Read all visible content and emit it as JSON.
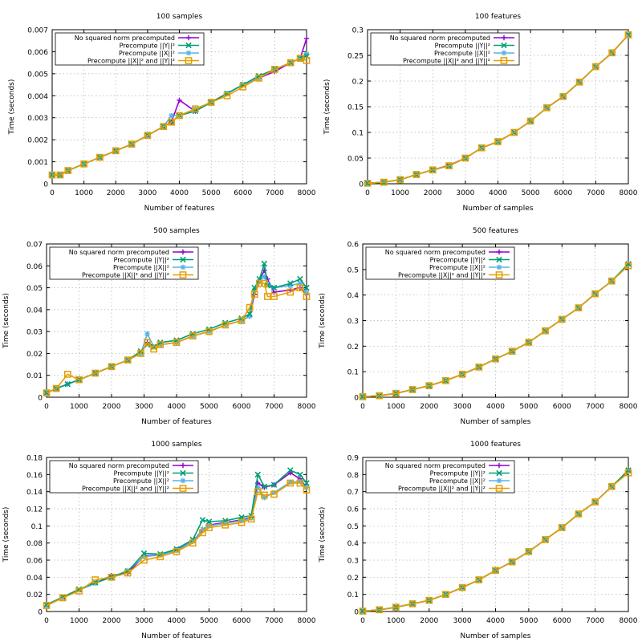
{
  "legend": {
    "entries": [
      {
        "label": "No squared norm precomputed",
        "color": "#9400d3",
        "marker": "plus"
      },
      {
        "label": "Precompute ||Y||²",
        "color": "#009e73",
        "marker": "cross"
      },
      {
        "label": "Precompute ||X||²",
        "color": "#56b4e9",
        "marker": "star"
      },
      {
        "label": "Precompute ||X||² and ||Y||²",
        "color": "#e69f00",
        "marker": "square"
      }
    ]
  },
  "chart_data": [
    {
      "type": "line",
      "title": "100 samples",
      "xlabel": "Number of features",
      "ylabel": "Time (seconds)",
      "xlim": [
        0,
        8000
      ],
      "ylim": [
        0,
        0.007
      ],
      "xticks": [
        0,
        1000,
        2000,
        3000,
        4000,
        5000,
        6000,
        7000,
        8000
      ],
      "xtick_labels": [
        "0",
        "1000",
        "2000",
        "3000",
        "4000",
        "5000",
        "6000",
        "7000",
        "8000"
      ],
      "yticks": [
        0,
        0.001,
        0.002,
        0.003,
        0.004,
        0.005,
        0.006,
        0.007
      ],
      "ytick_labels": [
        "0",
        "0.001",
        "0.002",
        "0.003",
        "0.004",
        "0.005",
        "0.006",
        "0.007"
      ],
      "x": [
        0,
        250,
        500,
        1000,
        1500,
        2000,
        2500,
        3000,
        3500,
        3750,
        4000,
        4500,
        5000,
        5500,
        6000,
        6500,
        7000,
        7500,
        7800,
        8000
      ],
      "series": [
        {
          "name": "No squared norm precomputed",
          "values": [
            0.0004,
            0.0004,
            0.0006,
            0.0009,
            0.0012,
            0.0015,
            0.0018,
            0.0022,
            0.0026,
            0.0028,
            0.0038,
            0.0033,
            0.0037,
            0.0041,
            0.0045,
            0.0048,
            0.0051,
            0.0055,
            0.0057,
            0.0066
          ]
        },
        {
          "name": "Precompute ||Y||²",
          "values": [
            0.0004,
            0.0004,
            0.0006,
            0.0009,
            0.0012,
            0.0015,
            0.0018,
            0.0022,
            0.0026,
            0.0028,
            0.0031,
            0.0033,
            0.0037,
            0.0041,
            0.0045,
            0.0049,
            0.0052,
            0.0055,
            0.0057,
            0.0058
          ]
        },
        {
          "name": "Precompute ||X||²",
          "values": [
            0.0004,
            0.0004,
            0.0006,
            0.0009,
            0.0012,
            0.0015,
            0.0018,
            0.0022,
            0.0026,
            0.0031,
            0.0031,
            0.0034,
            0.0037,
            0.0041,
            0.0045,
            0.0048,
            0.0052,
            0.0055,
            0.0057,
            0.0059
          ]
        },
        {
          "name": "Precompute ||X||² and ||Y||²",
          "values": [
            0.0004,
            0.0004,
            0.0006,
            0.0009,
            0.0012,
            0.0015,
            0.0018,
            0.0022,
            0.0026,
            0.0028,
            0.0031,
            0.0034,
            0.0037,
            0.004,
            0.0044,
            0.0048,
            0.0052,
            0.0055,
            0.0057,
            0.0056
          ]
        }
      ]
    },
    {
      "type": "line",
      "title": "100 features",
      "xlabel": "Number of samples",
      "ylabel": "Time (seconds)",
      "xlim": [
        0,
        8000
      ],
      "ylim": [
        0,
        0.3
      ],
      "xticks": [
        0,
        1000,
        2000,
        3000,
        4000,
        5000,
        6000,
        7000,
        8000
      ],
      "xtick_labels": [
        "0",
        "1000",
        "2000",
        "3000",
        "4000",
        "5000",
        "6000",
        "7000",
        "8000"
      ],
      "yticks": [
        0,
        0.05,
        0.1,
        0.15,
        0.2,
        0.25,
        0.3
      ],
      "ytick_labels": [
        "0",
        "0.05",
        "0.1",
        "0.15",
        "0.2",
        "0.25",
        "0.3"
      ],
      "x": [
        0,
        500,
        1000,
        1500,
        2000,
        2500,
        3000,
        3500,
        4000,
        4500,
        5000,
        5500,
        6000,
        6500,
        7000,
        7500,
        8000
      ],
      "series": [
        {
          "name": "No squared norm precomputed",
          "values": [
            0.001,
            0.003,
            0.008,
            0.018,
            0.027,
            0.036,
            0.05,
            0.07,
            0.082,
            0.1,
            0.122,
            0.148,
            0.17,
            0.198,
            0.228,
            0.255,
            0.29
          ]
        },
        {
          "name": "Precompute ||Y||²",
          "values": [
            0.001,
            0.003,
            0.008,
            0.018,
            0.027,
            0.035,
            0.05,
            0.07,
            0.082,
            0.1,
            0.122,
            0.148,
            0.17,
            0.198,
            0.228,
            0.255,
            0.29
          ]
        },
        {
          "name": "Precompute ||X||²",
          "values": [
            0.001,
            0.003,
            0.008,
            0.018,
            0.027,
            0.035,
            0.05,
            0.07,
            0.082,
            0.1,
            0.122,
            0.148,
            0.17,
            0.198,
            0.228,
            0.255,
            0.29
          ]
        },
        {
          "name": "Precompute ||X||² and ||Y||²",
          "values": [
            0.001,
            0.003,
            0.008,
            0.018,
            0.027,
            0.035,
            0.05,
            0.07,
            0.082,
            0.1,
            0.122,
            0.148,
            0.17,
            0.198,
            0.228,
            0.255,
            0.29
          ]
        }
      ]
    },
    {
      "type": "line",
      "title": "500 samples",
      "xlabel": "Number of features",
      "ylabel": "Time (seconds)",
      "xlim": [
        0,
        8000
      ],
      "ylim": [
        0,
        0.07
      ],
      "xticks": [
        0,
        1000,
        2000,
        3000,
        4000,
        5000,
        6000,
        7000,
        8000
      ],
      "xtick_labels": [
        "0",
        "1000",
        "2000",
        "3000",
        "4000",
        "5000",
        "6000",
        "7000",
        "8000"
      ],
      "yticks": [
        0,
        0.01,
        0.02,
        0.03,
        0.04,
        0.05,
        0.06,
        0.07
      ],
      "ytick_labels": [
        "0",
        "0.01",
        "0.02",
        "0.03",
        "0.04",
        "0.05",
        "0.06",
        "0.07"
      ],
      "x": [
        0,
        300,
        650,
        1000,
        1500,
        2000,
        2500,
        2900,
        3100,
        3300,
        3500,
        4000,
        4500,
        5000,
        5500,
        6000,
        6250,
        6400,
        6550,
        6700,
        6800,
        7000,
        7500,
        7800,
        8000
      ],
      "series": [
        {
          "name": "No squared norm precomputed",
          "values": [
            0.002,
            0.004,
            0.006,
            0.008,
            0.011,
            0.014,
            0.017,
            0.02,
            0.025,
            0.023,
            0.024,
            0.025,
            0.028,
            0.03,
            0.033,
            0.035,
            0.037,
            0.047,
            0.053,
            0.058,
            0.054,
            0.048,
            0.049,
            0.05,
            0.047
          ]
        },
        {
          "name": "Precompute ||Y||²",
          "values": [
            0.002,
            0.004,
            0.006,
            0.008,
            0.011,
            0.014,
            0.017,
            0.021,
            0.024,
            0.023,
            0.025,
            0.026,
            0.029,
            0.031,
            0.034,
            0.036,
            0.038,
            0.05,
            0.054,
            0.061,
            0.051,
            0.05,
            0.052,
            0.054,
            0.05
          ]
        },
        {
          "name": "Precompute ||X||²",
          "values": [
            0.002,
            0.004,
            0.006,
            0.008,
            0.011,
            0.014,
            0.017,
            0.02,
            0.029,
            0.023,
            0.024,
            0.025,
            0.028,
            0.03,
            0.033,
            0.035,
            0.037,
            0.049,
            0.053,
            0.055,
            0.052,
            0.05,
            0.051,
            0.052,
            0.048
          ]
        },
        {
          "name": "Precompute ||X||² and ||Y||²",
          "values": [
            0.002,
            0.004,
            0.0105,
            0.008,
            0.011,
            0.014,
            0.017,
            0.02,
            0.025,
            0.022,
            0.024,
            0.025,
            0.028,
            0.03,
            0.033,
            0.035,
            0.041,
            0.047,
            0.052,
            0.052,
            0.046,
            0.046,
            0.048,
            0.05,
            0.046
          ]
        }
      ]
    },
    {
      "type": "line",
      "title": "500 features",
      "xlabel": "Number of samples",
      "ylabel": "Time (seconds)",
      "xlim": [
        0,
        8000
      ],
      "ylim": [
        0,
        0.6
      ],
      "xticks": [
        0,
        1000,
        2000,
        3000,
        4000,
        5000,
        6000,
        7000,
        8000
      ],
      "xtick_labels": [
        "0",
        "1000",
        "2000",
        "3000",
        "4000",
        "5000",
        "6000",
        "7000",
        "8000"
      ],
      "yticks": [
        0,
        0.1,
        0.2,
        0.3,
        0.4,
        0.5,
        0.6
      ],
      "ytick_labels": [
        "0",
        "0.1",
        "0.2",
        "0.3",
        "0.4",
        "0.5",
        "0.6"
      ],
      "x": [
        0,
        500,
        1000,
        1500,
        2000,
        2500,
        3000,
        3500,
        4000,
        4500,
        5000,
        5500,
        6000,
        6500,
        7000,
        7500,
        8000
      ],
      "series": [
        {
          "name": "No squared norm precomputed",
          "values": [
            0.002,
            0.006,
            0.015,
            0.03,
            0.045,
            0.065,
            0.09,
            0.118,
            0.15,
            0.18,
            0.215,
            0.26,
            0.305,
            0.35,
            0.405,
            0.455,
            0.52
          ]
        },
        {
          "name": "Precompute ||Y||²",
          "values": [
            0.002,
            0.006,
            0.015,
            0.03,
            0.045,
            0.065,
            0.09,
            0.118,
            0.15,
            0.18,
            0.215,
            0.26,
            0.305,
            0.35,
            0.405,
            0.455,
            0.522
          ]
        },
        {
          "name": "Precompute ||X||²",
          "values": [
            0.002,
            0.006,
            0.015,
            0.03,
            0.045,
            0.065,
            0.09,
            0.118,
            0.15,
            0.18,
            0.215,
            0.26,
            0.305,
            0.35,
            0.405,
            0.455,
            0.52
          ]
        },
        {
          "name": "Precompute ||X||² and ||Y||²",
          "values": [
            0.002,
            0.006,
            0.015,
            0.03,
            0.045,
            0.065,
            0.09,
            0.118,
            0.15,
            0.18,
            0.215,
            0.26,
            0.305,
            0.35,
            0.405,
            0.455,
            0.515
          ]
        }
      ]
    },
    {
      "type": "line",
      "title": "1000 samples",
      "xlabel": "Number of features",
      "ylabel": "Time (seconds)",
      "xlim": [
        0,
        8000
      ],
      "ylim": [
        0,
        0.18
      ],
      "xticks": [
        0,
        1000,
        2000,
        3000,
        4000,
        5000,
        6000,
        7000,
        8000
      ],
      "xtick_labels": [
        "0",
        "1000",
        "2000",
        "3000",
        "4000",
        "5000",
        "6000",
        "7000",
        "8000"
      ],
      "yticks": [
        0,
        0.02,
        0.04,
        0.06,
        0.08,
        0.1,
        0.12,
        0.14,
        0.16,
        0.18
      ],
      "ytick_labels": [
        "0",
        "0.02",
        "0.04",
        "0.06",
        "0.08",
        "0.1",
        "0.12",
        "0.14",
        "0.16",
        "0.18"
      ],
      "x": [
        0,
        500,
        1000,
        1500,
        2000,
        2500,
        3000,
        3500,
        4000,
        4500,
        4800,
        5000,
        5500,
        6000,
        6300,
        6500,
        6700,
        7000,
        7500,
        7800,
        8000
      ],
      "series": [
        {
          "name": "No squared norm precomputed",
          "values": [
            0.007,
            0.016,
            0.025,
            0.033,
            0.042,
            0.045,
            0.065,
            0.066,
            0.072,
            0.082,
            0.095,
            0.101,
            0.104,
            0.107,
            0.11,
            0.15,
            0.145,
            0.148,
            0.162,
            0.155,
            0.145
          ]
        },
        {
          "name": "Precompute ||Y||²",
          "values": [
            0.008,
            0.017,
            0.026,
            0.034,
            0.04,
            0.047,
            0.068,
            0.067,
            0.073,
            0.084,
            0.107,
            0.105,
            0.106,
            0.11,
            0.112,
            0.16,
            0.146,
            0.148,
            0.165,
            0.16,
            0.15
          ]
        },
        {
          "name": "Precompute ||X||²",
          "values": [
            0.007,
            0.016,
            0.025,
            0.033,
            0.04,
            0.048,
            0.064,
            0.066,
            0.071,
            0.082,
            0.096,
            0.1,
            0.103,
            0.106,
            0.109,
            0.145,
            0.133,
            0.139,
            0.151,
            0.152,
            0.145
          ]
        },
        {
          "name": "Precompute ||X||² and ||Y||²",
          "values": [
            0.007,
            0.016,
            0.024,
            0.037,
            0.04,
            0.045,
            0.06,
            0.064,
            0.07,
            0.08,
            0.092,
            0.098,
            0.101,
            0.104,
            0.108,
            0.14,
            0.136,
            0.137,
            0.15,
            0.15,
            0.142
          ]
        }
      ]
    },
    {
      "type": "line",
      "title": "1000 features",
      "xlabel": "Number of samples",
      "ylabel": "Time (seconds)",
      "xlim": [
        0,
        8000
      ],
      "ylim": [
        0,
        0.9
      ],
      "xticks": [
        0,
        1000,
        2000,
        3000,
        4000,
        5000,
        6000,
        7000,
        8000
      ],
      "xtick_labels": [
        "0",
        "1000",
        "2000",
        "3000",
        "4000",
        "5000",
        "6000",
        "7000",
        "8000"
      ],
      "yticks": [
        0,
        0.1,
        0.2,
        0.3,
        0.4,
        0.5,
        0.6,
        0.7,
        0.8,
        0.9
      ],
      "ytick_labels": [
        "0",
        "0.1",
        "0.2",
        "0.3",
        "0.4",
        "0.5",
        "0.6",
        "0.7",
        "0.8",
        "0.9"
      ],
      "x": [
        0,
        500,
        1000,
        1500,
        2000,
        2500,
        3000,
        3500,
        4000,
        4500,
        5000,
        5500,
        6000,
        6500,
        7000,
        7500,
        8000
      ],
      "series": [
        {
          "name": "No squared norm precomputed",
          "values": [
            0.002,
            0.01,
            0.025,
            0.045,
            0.065,
            0.1,
            0.14,
            0.185,
            0.24,
            0.29,
            0.35,
            0.42,
            0.49,
            0.57,
            0.64,
            0.73,
            0.82
          ]
        },
        {
          "name": "Precompute ||Y||²",
          "values": [
            0.002,
            0.01,
            0.025,
            0.045,
            0.065,
            0.1,
            0.14,
            0.185,
            0.24,
            0.29,
            0.35,
            0.42,
            0.49,
            0.57,
            0.64,
            0.73,
            0.825
          ]
        },
        {
          "name": "Precompute ||X||²",
          "values": [
            0.002,
            0.01,
            0.025,
            0.045,
            0.065,
            0.1,
            0.14,
            0.185,
            0.24,
            0.29,
            0.35,
            0.42,
            0.49,
            0.57,
            0.64,
            0.73,
            0.82
          ]
        },
        {
          "name": "Precompute ||X||² and ||Y||²",
          "values": [
            0.002,
            0.01,
            0.025,
            0.045,
            0.065,
            0.1,
            0.14,
            0.185,
            0.24,
            0.29,
            0.35,
            0.42,
            0.49,
            0.57,
            0.64,
            0.73,
            0.81
          ]
        }
      ]
    }
  ]
}
